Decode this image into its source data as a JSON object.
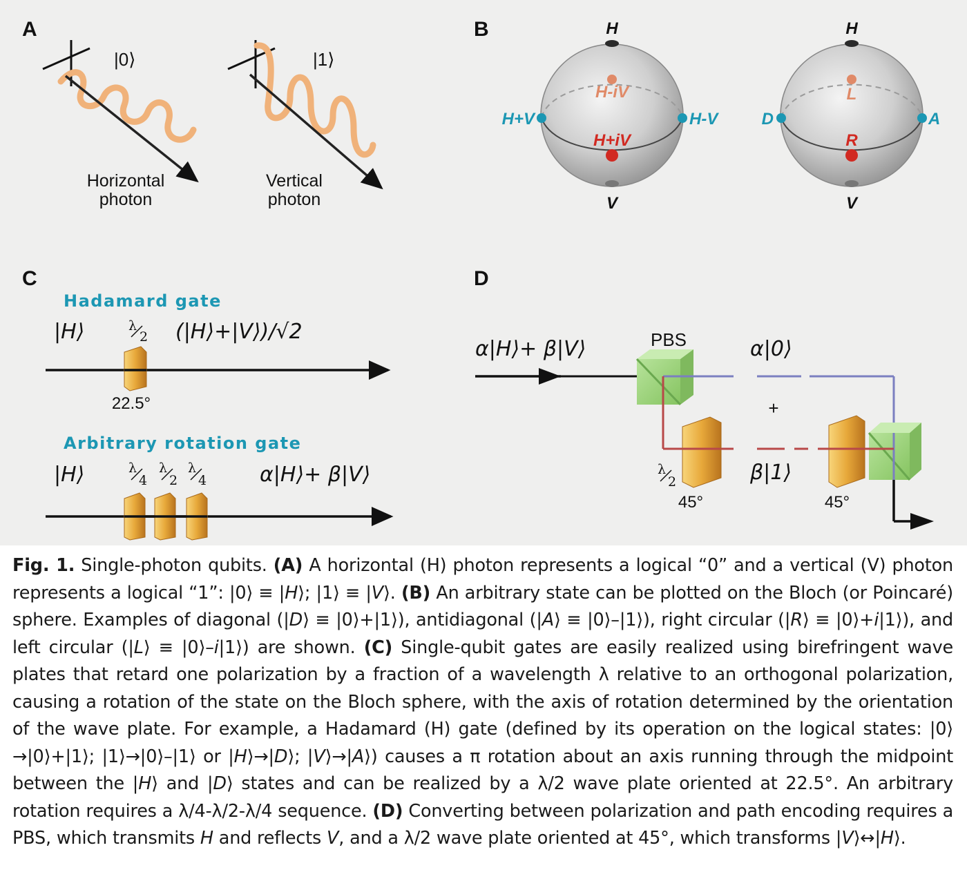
{
  "panels": {
    "a": {
      "letter": "A",
      "ket0": "|0⟩",
      "ket1": "|1⟩",
      "horizontal_line1": "Horizontal",
      "horizontal_line2": "photon",
      "vertical_line1": "Vertical",
      "vertical_line2": "photon"
    },
    "b": {
      "letter": "B",
      "sphere1": {
        "top": "H",
        "bottom": "V",
        "left": "H+V",
        "right": "H-V",
        "back": "H-iV",
        "front": "H+iV"
      },
      "sphere2": {
        "top": "H",
        "bottom": "V",
        "left": "D",
        "right": "A",
        "back": "L",
        "front": "R"
      }
    },
    "c": {
      "letter": "C",
      "hadamard_title": "Hadamard gate",
      "hadamard_input": "|H⟩",
      "hadamard_plate_num": "λ",
      "hadamard_plate_den": "2",
      "hadamard_output": "(|H⟩+|V⟩)/√2",
      "hadamard_angle": "22.5°",
      "arbitrary_title": "Arbitrary rotation gate",
      "arbitrary_input": "|H⟩",
      "arbitrary_plates": [
        {
          "num": "λ",
          "den": "4"
        },
        {
          "num": "λ",
          "den": "2"
        },
        {
          "num": "λ",
          "den": "4"
        }
      ],
      "arbitrary_output": "α|H⟩+ β|V⟩"
    },
    "d": {
      "letter": "D",
      "input": "α|H⟩+ β|V⟩",
      "pbs": "PBS",
      "upper_output": "α|0⟩",
      "plus": "+",
      "lower_output": "β|1⟩",
      "plate_num": "λ",
      "plate_den": "2",
      "angle_left": "45°",
      "angle_right": "45°"
    }
  },
  "colors": {
    "panel_background": "#efefee",
    "bloch_side_cyan": "#1c97b3",
    "bloch_front_red": "#d12a22",
    "bloch_back_salmon": "#e08a68",
    "photon_wave": "#f0b27a",
    "gate_title_cyan": "#1c97b3",
    "path_blue": "#7b7fc0",
    "path_red": "#b84848",
    "pbs_green": "#9bd27a",
    "plate_gold": "#e7a83a"
  },
  "caption": {
    "fig_label": "Fig. 1.",
    "title": "Single-photon qubits.",
    "a_label": "(A)",
    "a_text": "A horizontal (H) photon represents a logical “0” and a vertical (V) photon represents a logical “1”: |0⟩ ≡ |",
    "a_H": "H",
    "a_mid": "⟩; |1⟩ ≡ |",
    "a_V": "V",
    "a_end": "⟩.",
    "b_label": "(B)",
    "b_text1": "An arbitrary state can be plotted on the Bloch (or Poincaré) sphere. Examples of diagonal (|",
    "b_D": "D",
    "b_text2": "⟩ ≡ |0⟩+|1⟩), antidiagonal (|",
    "b_A": "A",
    "b_text3": "⟩ ≡ |0⟩–|1⟩), right circular (|",
    "b_R": "R",
    "b_text4": "⟩ ≡ |0⟩+",
    "b_i1": "i",
    "b_text5": "|1⟩), and left circular (|",
    "b_L": "L",
    "b_text6": "⟩ ≡ |0⟩–",
    "b_i2": "i",
    "b_text7": "|1⟩) are shown.",
    "c_label": "(C)",
    "c_text1": "Single-qubit gates are easily realized using birefringent wave plates that retard one polarization by a fraction of a wavelength λ relative to an orthogonal polarization, causing a rotation of the state on the Bloch sphere, with the axis of rotation determined by the orientation of the wave plate. For example, a Hadamard (H) gate (defined by its operation on the logical states: |0⟩→|0⟩+|1⟩; |1⟩→|0⟩–|1⟩ or |",
    "c_H1": "H",
    "c_text2": "⟩→|",
    "c_D1": "D",
    "c_text3": "⟩; |",
    "c_V1": "V",
    "c_text4": "⟩→|",
    "c_A1": "A",
    "c_text5": "⟩) causes a π rotation about an axis running through the midpoint between the |",
    "c_H2": "H",
    "c_text6": "⟩ and |",
    "c_D2": "D",
    "c_text7": "⟩ states and can be realized by a λ/2 wave plate oriented at 22.5°. An arbitrary rotation requires a λ/4-λ/2-λ/4 sequence.",
    "d_label": "(D)",
    "d_text1": "Converting between polarization and path encoding requires a PBS, which transmits",
    "d_H": "H",
    "d_text2": "and reflects",
    "d_V": "V",
    "d_text3": ", and a λ/2 wave plate oriented at 45°, which transforms |",
    "d_V2": "V",
    "d_text4": "⟩↔|",
    "d_H2": "H",
    "d_text5": "⟩."
  }
}
